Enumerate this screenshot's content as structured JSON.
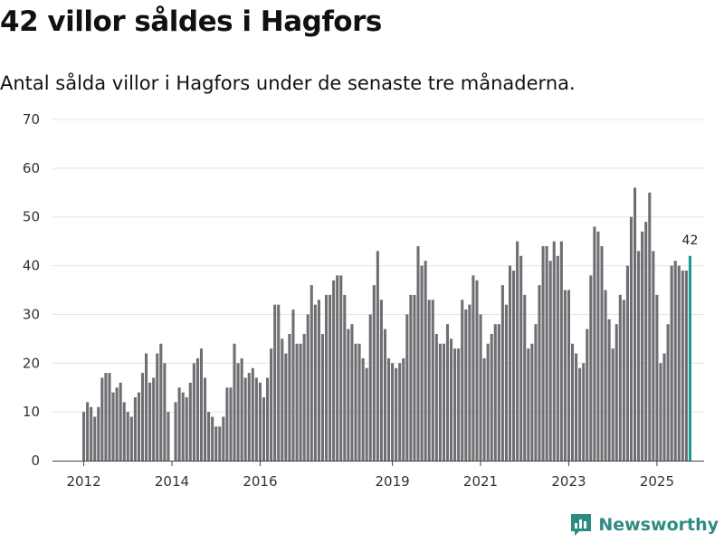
{
  "title": "42 villor såldes i Hagfors",
  "subtitle": "Antal sålda villor i Hagfors under de senaste tre månaderna.",
  "brand": {
    "name": "Newsworthy",
    "icon": "newsworthy-logo-icon"
  },
  "colors": {
    "bar": "#6f6e73",
    "highlight": "#1a9990",
    "grid": "#e3e3e3",
    "axis": "#444444",
    "brand": "#2e8b84"
  },
  "chart_data": {
    "type": "bar",
    "title": "42 villor såldes i Hagfors",
    "xlabel": "",
    "ylabel": "",
    "ylim": [
      0,
      70
    ],
    "yticks": [
      0,
      10,
      20,
      30,
      40,
      50,
      60,
      70
    ],
    "grid": true,
    "xtick_labels": [
      {
        "label": "2012",
        "index": 0
      },
      {
        "label": "2014",
        "index": 24
      },
      {
        "label": "2016",
        "index": 48
      },
      {
        "label": "2019",
        "index": 84
      },
      {
        "label": "2021",
        "index": 108
      },
      {
        "label": "2023",
        "index": 132
      },
      {
        "label": "2025",
        "index": 156
      }
    ],
    "values": [
      10,
      12,
      11,
      9,
      11,
      17,
      18,
      18,
      14,
      15,
      16,
      12,
      10,
      9,
      13,
      14,
      18,
      22,
      16,
      17,
      22,
      24,
      20,
      10,
      0,
      12,
      15,
      14,
      13,
      16,
      20,
      21,
      23,
      17,
      10,
      9,
      7,
      7,
      9,
      15,
      15,
      24,
      20,
      21,
      17,
      18,
      19,
      17,
      16,
      13,
      17,
      23,
      32,
      32,
      25,
      22,
      26,
      31,
      24,
      24,
      26,
      30,
      36,
      32,
      33,
      26,
      34,
      34,
      37,
      38,
      38,
      34,
      27,
      28,
      24,
      24,
      21,
      19,
      30,
      36,
      43,
      33,
      27,
      21,
      20,
      19,
      20,
      21,
      30,
      34,
      34,
      44,
      40,
      41,
      33,
      33,
      26,
      24,
      24,
      28,
      25,
      23,
      23,
      33,
      31,
      32,
      38,
      37,
      30,
      21,
      24,
      26,
      28,
      28,
      36,
      32,
      40,
      39,
      45,
      42,
      34,
      23,
      24,
      28,
      36,
      44,
      44,
      41,
      45,
      42,
      45,
      35,
      35,
      24,
      22,
      19,
      20,
      27,
      38,
      48,
      47,
      44,
      35,
      29,
      23,
      28,
      34,
      33,
      40,
      50,
      56,
      43,
      47,
      49,
      55,
      43,
      34,
      20,
      22,
      28,
      40,
      41,
      40,
      39,
      39,
      42
    ],
    "highlight_label": "42"
  }
}
